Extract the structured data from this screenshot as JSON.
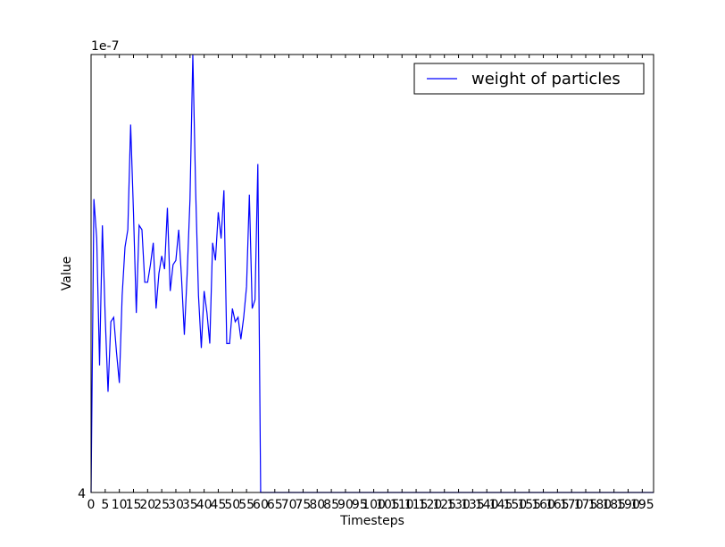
{
  "chart_data": {
    "type": "line",
    "xlabel": "Timesteps",
    "ylabel": "Value",
    "offset_label": "1e-7",
    "y_tick_label": "4",
    "xlim": [
      0,
      199
    ],
    "ylim": [
      4.0,
      4.000001
    ],
    "x_ticks": [
      0,
      5,
      10,
      15,
      20,
      25,
      30,
      35,
      40,
      45,
      50,
      55,
      60,
      65,
      70,
      75,
      80,
      85,
      90,
      95,
      100,
      105,
      110,
      115,
      120,
      125,
      130,
      135,
      140,
      145,
      150,
      155,
      160,
      165,
      170,
      175,
      180,
      185,
      190,
      195
    ],
    "legend": {
      "placement": "top-right",
      "entries": [
        "weight of particles"
      ]
    },
    "series": [
      {
        "name": "weight of particles",
        "color": "#0000ff",
        "x": [
          0,
          1,
          2,
          3,
          4,
          5,
          6,
          7,
          8,
          9,
          10,
          11,
          12,
          13,
          14,
          15,
          16,
          17,
          18,
          19,
          20,
          21,
          22,
          23,
          24,
          25,
          26,
          27,
          28,
          29,
          30,
          31,
          32,
          33,
          34,
          35,
          36,
          37,
          38,
          39,
          40,
          41,
          42,
          43,
          44,
          45,
          46,
          47,
          48,
          49,
          50,
          51,
          52,
          53,
          54,
          55,
          56,
          57,
          58,
          59,
          60,
          61,
          199
        ],
        "y": [
          4.0,
          4.00000067,
          4.00000058,
          4.00000029,
          4.00000061,
          4.0000004,
          4.00000023,
          4.00000039,
          4.0000004,
          4.00000032,
          4.00000025,
          4.00000045,
          4.00000056,
          4.0000006,
          4.00000084,
          4.00000064,
          4.00000041,
          4.00000061,
          4.0000006,
          4.00000048,
          4.00000048,
          4.00000052,
          4.00000057,
          4.00000042,
          4.0000005,
          4.00000054,
          4.00000051,
          4.00000065,
          4.00000046,
          4.00000052,
          4.00000053,
          4.0000006,
          4.00000049,
          4.00000036,
          4.0000005,
          4.00000067,
          4.000001,
          4.00000069,
          4.00000045,
          4.00000033,
          4.00000046,
          4.00000041,
          4.00000034,
          4.00000057,
          4.00000053,
          4.00000064,
          4.00000058,
          4.00000069,
          4.00000034,
          4.00000034,
          4.00000042,
          4.00000039,
          4.0000004,
          4.00000035,
          4.0000004,
          4.00000047,
          4.00000068,
          4.00000042,
          4.00000044,
          4.00000075,
          4.0,
          4.0,
          4.0
        ]
      }
    ]
  }
}
